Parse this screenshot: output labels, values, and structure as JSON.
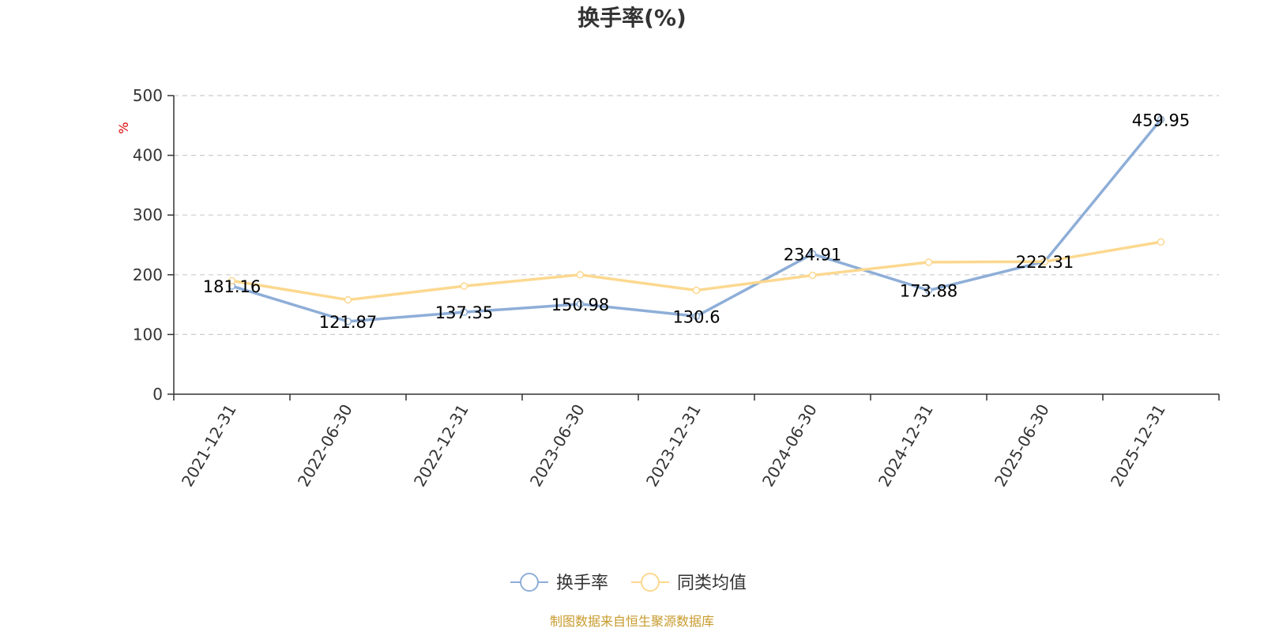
{
  "chart_data": {
    "type": "line",
    "title": "换手率(%)",
    "ylabel": "%",
    "xlabel": "",
    "ylim": [
      0,
      500
    ],
    "yticks": [
      0,
      100,
      200,
      300,
      400,
      500
    ],
    "grid": true,
    "legend_position": "bottom-center",
    "categories": [
      "2021-12-31",
      "2022-06-30",
      "2022-12-31",
      "2023-06-30",
      "2023-12-31",
      "2024-06-30",
      "2024-12-31",
      "2025-06-30",
      "2025-12-31"
    ],
    "series": [
      {
        "name": "换手率",
        "color": "#8eaed8",
        "labeled": true,
        "values": [
          181.16,
          121.87,
          137.35,
          150.98,
          130.6,
          234.91,
          173.88,
          222.31,
          459.95
        ]
      },
      {
        "name": "同类均值",
        "color": "#fcd88f",
        "labeled": false,
        "values": [
          190,
          158,
          181,
          200,
          174,
          199,
          221,
          222,
          255
        ]
      }
    ],
    "source": "制图数据来自恒生聚源数据库"
  }
}
